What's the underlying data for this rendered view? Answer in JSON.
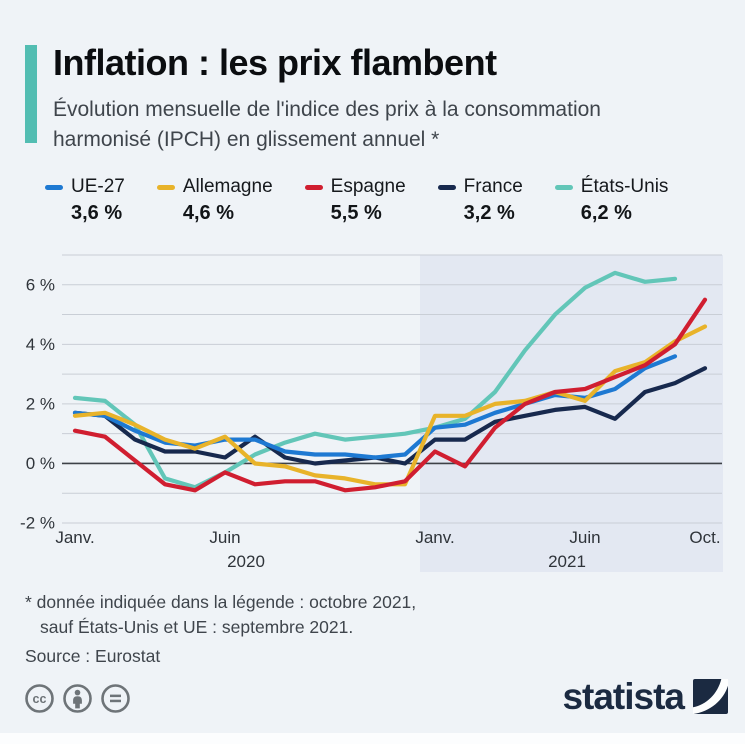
{
  "header": {
    "title": "Inflation : les prix flambent",
    "subtitle_line1": "Évolution mensuelle de l'indice des prix à la consommation",
    "subtitle_line2": "harmonisé (IPCH) en glissement annuel *",
    "accent_color": "#52bdb2"
  },
  "chart_data": {
    "type": "line",
    "unit": "%",
    "months": [
      "Janv. 2020",
      "Févr. 2020",
      "Mars 2020",
      "Avr. 2020",
      "Mai 2020",
      "Juin 2020",
      "Juil. 2020",
      "Août 2020",
      "Sept. 2020",
      "Oct. 2020",
      "Nov. 2020",
      "Déc. 2020",
      "Janv. 2021",
      "Févr. 2021",
      "Mars 2021",
      "Avr. 2021",
      "Mai 2021",
      "Juin 2021",
      "Juil. 2021",
      "Août 2021",
      "Sept. 2021",
      "Oct. 2021"
    ],
    "series": [
      {
        "name": "UE-27",
        "value_label": "3,6 %",
        "color": "#1e79d2",
        "z": 2,
        "values": [
          1.7,
          1.6,
          1.1,
          0.7,
          0.6,
          0.8,
          0.8,
          0.4,
          0.3,
          0.3,
          0.2,
          0.3,
          1.2,
          1.3,
          1.7,
          2.0,
          2.3,
          2.2,
          2.5,
          3.2,
          3.6
        ]
      },
      {
        "name": "Allemagne",
        "value_label": "4,6 %",
        "color": "#e8b32a",
        "z": 3,
        "values": [
          1.6,
          1.7,
          1.3,
          0.8,
          0.5,
          0.9,
          0.0,
          -0.1,
          -0.4,
          -0.5,
          -0.7,
          -0.7,
          1.6,
          1.6,
          2.0,
          2.1,
          2.4,
          2.1,
          3.1,
          3.4,
          4.1,
          4.6
        ]
      },
      {
        "name": "Espagne",
        "value_label": "5,5 %",
        "color": "#d01e30",
        "z": 4,
        "values": [
          1.1,
          0.9,
          0.1,
          -0.7,
          -0.9,
          -0.3,
          -0.7,
          -0.6,
          -0.6,
          -0.9,
          -0.8,
          -0.6,
          0.4,
          -0.1,
          1.2,
          2.0,
          2.4,
          2.5,
          2.9,
          3.3,
          4.0,
          5.5
        ]
      },
      {
        "name": "France",
        "value_label": "3,2 %",
        "color": "#17294e",
        "z": 1,
        "values": [
          1.7,
          1.6,
          0.8,
          0.4,
          0.4,
          0.2,
          0.9,
          0.2,
          0.0,
          0.1,
          0.2,
          0.0,
          0.8,
          0.8,
          1.4,
          1.6,
          1.8,
          1.9,
          1.5,
          2.4,
          2.7,
          3.2
        ]
      },
      {
        "name": "États-Unis",
        "value_label": "6,2 %",
        "color": "#62c6b8",
        "z": 0,
        "values": [
          2.2,
          2.1,
          1.3,
          -0.5,
          -0.8,
          -0.3,
          0.3,
          0.7,
          1.0,
          0.8,
          0.9,
          1.0,
          1.2,
          1.5,
          2.4,
          3.8,
          5.0,
          5.9,
          6.4,
          6.1,
          6.2
        ]
      }
    ],
    "ylim": [
      -2,
      7
    ],
    "y_ticks": [
      {
        "label": "6 %",
        "value": 6
      },
      {
        "label": "4 %",
        "value": 4
      },
      {
        "label": "2 %",
        "value": 2
      },
      {
        "label": "0 %",
        "value": 0
      },
      {
        "label": "-2 %",
        "value": -2
      }
    ],
    "x_ticks": [
      {
        "label": "Janv.",
        "month": 0
      },
      {
        "label": "Juin",
        "month": 5
      },
      {
        "label": "Janv.",
        "month": 12
      },
      {
        "label": "Juin",
        "month": 17
      },
      {
        "label": "Oct.",
        "month": 21
      }
    ],
    "year_labels": [
      {
        "label": "2020",
        "month": 5.7
      },
      {
        "label": "2021",
        "month": 16.4
      }
    ],
    "highlight_region": {
      "label": "2021",
      "start_month_index": 11.5,
      "end_month_index": 21.6,
      "color": "#e3e8f2"
    },
    "grid": true,
    "legend_position": "top"
  },
  "footnotes": {
    "line1": "* donnée indiquée dans la légende : octobre 2021,",
    "line2": "sauf États-Unis et UE : septembre 2021.",
    "source": "Source : Eurostat"
  },
  "footer": {
    "brand": "statista",
    "license_icons": [
      "cc-icon",
      "attribution-icon",
      "no-derivatives-icon"
    ]
  },
  "colors": {
    "background": "#eff3f7",
    "grid": "#c9ced6",
    "zero_line": "#3d4147",
    "axis_text": "#2f343a",
    "text": "#16191d",
    "muted_text": "#3f454c",
    "brand_navy": "#1b2a41",
    "icon_gray": "#6e7478",
    "highlight": "#e3e8f2"
  }
}
